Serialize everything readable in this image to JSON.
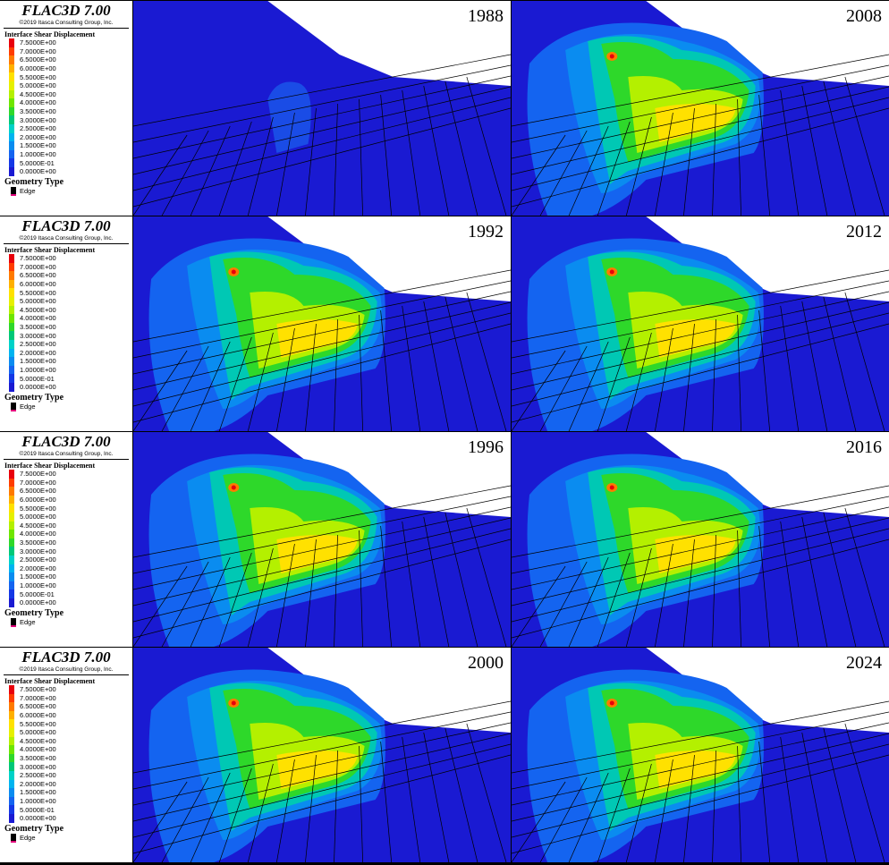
{
  "legend": {
    "software": "FLAC3D 7.00",
    "copyright": "©2019 Itasca Consulting Group, Inc.",
    "title": "Interface Shear Displacement",
    "levels": [
      "7.5000E+00",
      "7.0000E+00",
      "6.5000E+00",
      "6.0000E+00",
      "5.5000E+00",
      "5.0000E+00",
      "4.5000E+00",
      "4.0000E+00",
      "3.5000E+00",
      "3.0000E+00",
      "2.5000E+00",
      "2.0000E+00",
      "1.5000E+00",
      "1.0000E+00",
      "5.0000E-01",
      "0.0000E+00"
    ],
    "colors": [
      "#e8000b",
      "#ff3c00",
      "#ff7a00",
      "#ffb000",
      "#ffe100",
      "#e6f000",
      "#b4f000",
      "#6ee600",
      "#2ed82a",
      "#00c878",
      "#00d2c8",
      "#00b4f0",
      "#0a8cf0",
      "#1464f0",
      "#1438e6",
      "#1a1ad2"
    ],
    "geometry_title": "Geometry Type",
    "geometry_item": "Edge"
  },
  "panels": [
    {
      "year": "1988"
    },
    {
      "year": "2008"
    },
    {
      "year": "1992"
    },
    {
      "year": "2012"
    },
    {
      "year": "1996"
    },
    {
      "year": "2016"
    },
    {
      "year": "2000"
    },
    {
      "year": "2024"
    }
  ]
}
